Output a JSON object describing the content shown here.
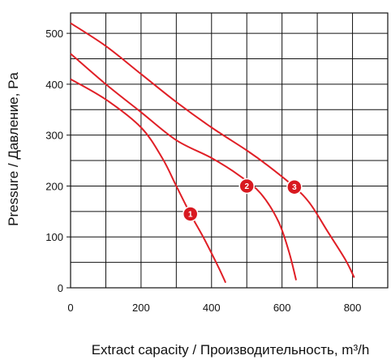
{
  "chart_data": {
    "type": "line",
    "title": "",
    "xlabel": "Extract capacity / Производительность, m³/h",
    "ylabel": "Pressure / Давление, Pa",
    "xlim": [
      0,
      900
    ],
    "ylim": [
      0,
      540
    ],
    "x_ticks": [
      "0",
      "200",
      "400",
      "600",
      "800"
    ],
    "y_ticks": [
      "0",
      "100",
      "200",
      "300",
      "400",
      "500"
    ],
    "grid": true,
    "legend": "none",
    "line_color": "#e01f26",
    "series": [
      {
        "marker": "1",
        "marker_point": [
          340,
          145
        ],
        "points": [
          [
            0,
            410
          ],
          [
            100,
            370
          ],
          [
            200,
            315
          ],
          [
            260,
            255
          ],
          [
            300,
            200
          ],
          [
            340,
            145
          ],
          [
            380,
            95
          ],
          [
            420,
            40
          ],
          [
            440,
            10
          ]
        ]
      },
      {
        "marker": "2",
        "marker_point": [
          500,
          200
        ],
        "points": [
          [
            0,
            460
          ],
          [
            100,
            400
          ],
          [
            200,
            345
          ],
          [
            300,
            290
          ],
          [
            400,
            255
          ],
          [
            480,
            220
          ],
          [
            540,
            185
          ],
          [
            590,
            130
          ],
          [
            620,
            70
          ],
          [
            640,
            15
          ]
        ]
      },
      {
        "marker": "3",
        "marker_point": [
          635,
          198
        ],
        "points": [
          [
            0,
            520
          ],
          [
            100,
            475
          ],
          [
            200,
            420
          ],
          [
            300,
            365
          ],
          [
            400,
            315
          ],
          [
            500,
            270
          ],
          [
            560,
            240
          ],
          [
            635,
            198
          ],
          [
            680,
            165
          ],
          [
            730,
            110
          ],
          [
            780,
            55
          ],
          [
            805,
            20
          ]
        ]
      }
    ]
  }
}
